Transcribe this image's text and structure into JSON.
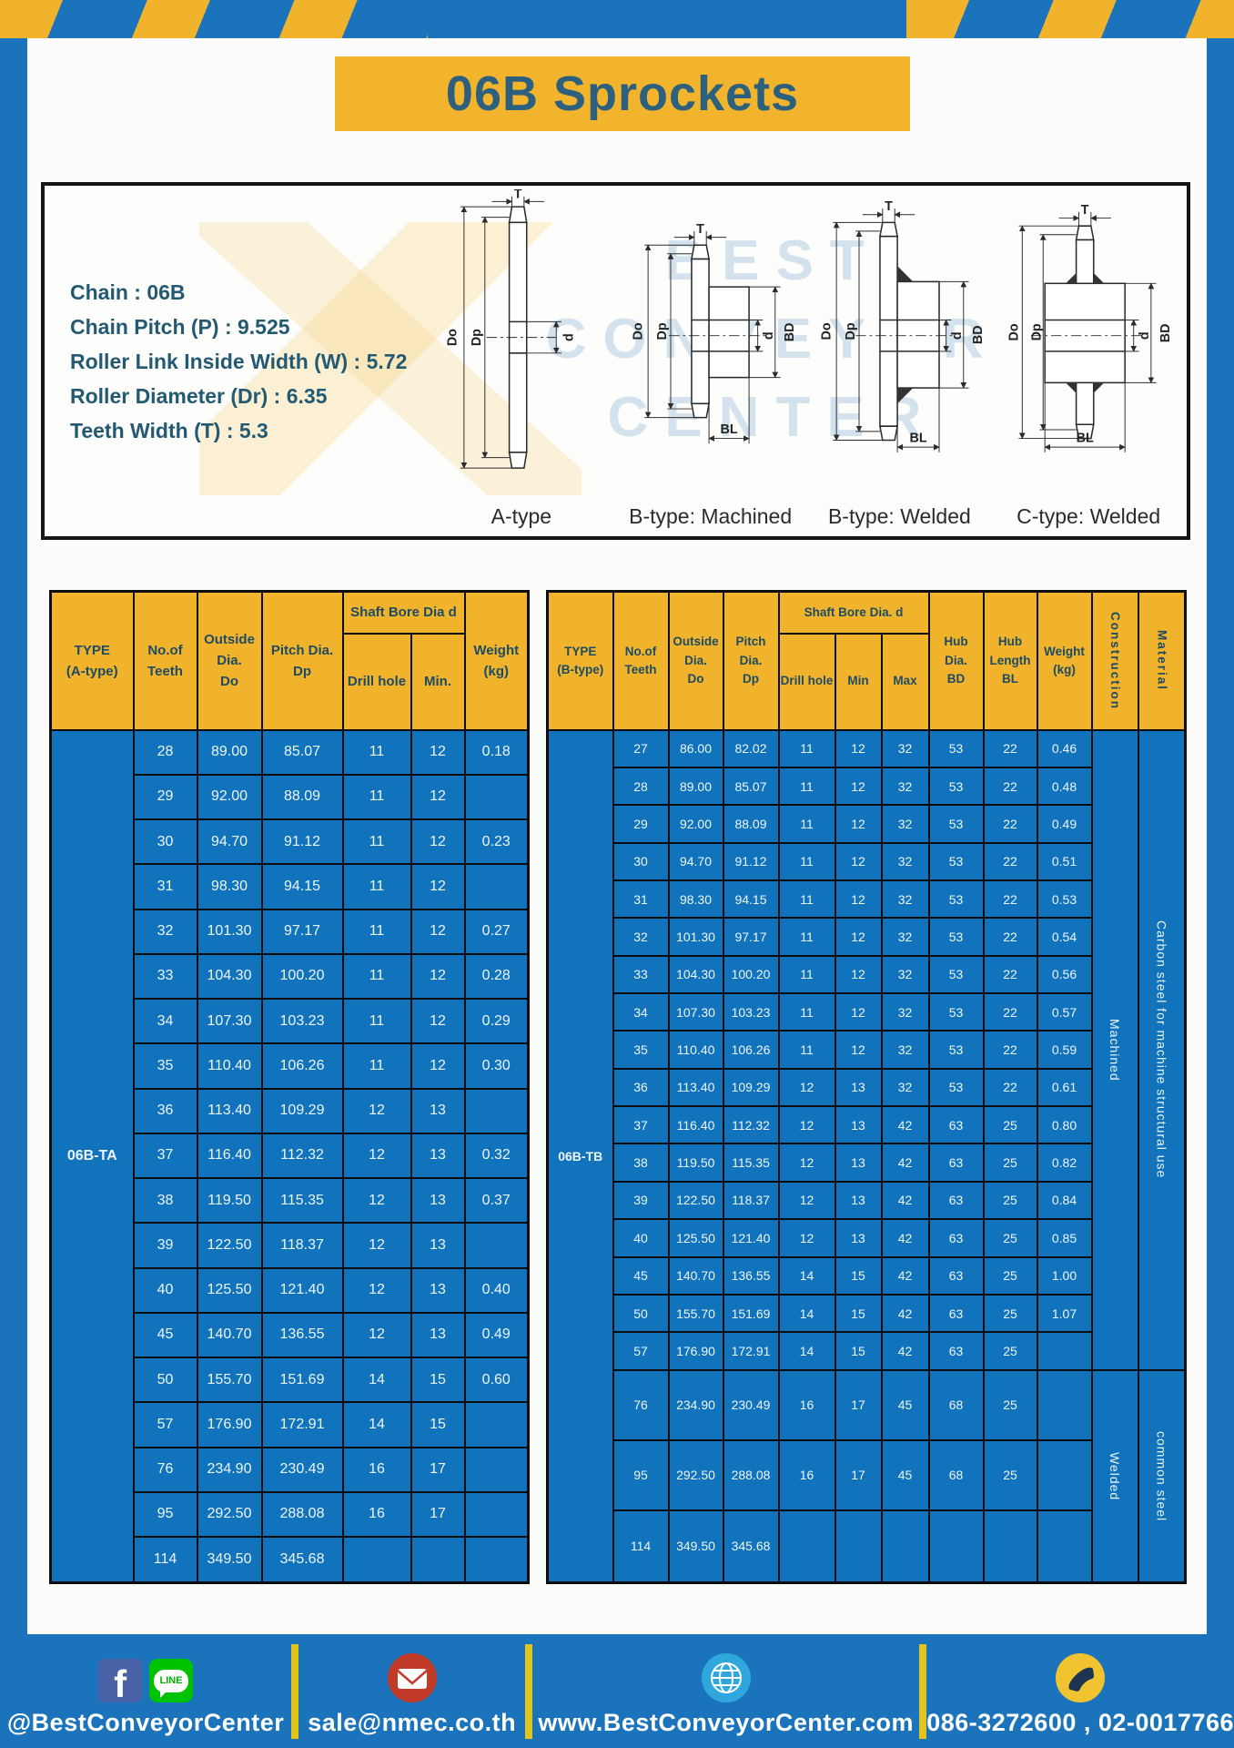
{
  "title": "06B Sprockets",
  "colors": {
    "brand_blue": "#1B74BB",
    "accent_yellow": "#F1B32C",
    "table_body_blue": "#1173BB",
    "title_text_teal": "#2C607E"
  },
  "specs": {
    "chain": "Chain : 06B",
    "pitch": "Chain Pitch (P) : 9.525",
    "roller_width": "Roller Link Inside Width (W) : 5.72",
    "roller_dia": "Roller Diameter (Dr) : 6.35",
    "teeth_width": "Teeth Width (T) : 5.3"
  },
  "diagrams": {
    "watermark": {
      "line1": "BEST",
      "line2": "CONVEYOR",
      "line3": "CENTER"
    },
    "dims": {
      "T": "T",
      "Do": "Do",
      "Dp": "Dp",
      "d": "d",
      "BD": "BD",
      "BL": "BL"
    },
    "labels": {
      "a": "A-type",
      "b_machined": "B-type: Machined",
      "b_welded": "B-type: Welded",
      "c_welded": "C-type: Welded"
    }
  },
  "tables": {
    "a": {
      "type_label": "06B-TA",
      "headers": {
        "type": "TYPE\n(A-type)",
        "teeth": "No.of\nTeeth",
        "outside": "Outside\nDia.\nDo",
        "pitch": "Pitch Dia.\nDp",
        "shaft_group": "Shaft Bore Dia d",
        "drill": "Drill hole",
        "min": "Min.",
        "weight": "Weight\n(kg)"
      },
      "rows": [
        [
          "28",
          "89.00",
          "85.07",
          "11",
          "12",
          "0.18"
        ],
        [
          "29",
          "92.00",
          "88.09",
          "11",
          "12",
          ""
        ],
        [
          "30",
          "94.70",
          "91.12",
          "11",
          "12",
          "0.23"
        ],
        [
          "31",
          "98.30",
          "94.15",
          "11",
          "12",
          ""
        ],
        [
          "32",
          "101.30",
          "97.17",
          "11",
          "12",
          "0.27"
        ],
        [
          "33",
          "104.30",
          "100.20",
          "11",
          "12",
          "0.28"
        ],
        [
          "34",
          "107.30",
          "103.23",
          "11",
          "12",
          "0.29"
        ],
        [
          "35",
          "110.40",
          "106.26",
          "11",
          "12",
          "0.30"
        ],
        [
          "36",
          "113.40",
          "109.29",
          "12",
          "13",
          ""
        ],
        [
          "37",
          "116.40",
          "112.32",
          "12",
          "13",
          "0.32"
        ],
        [
          "38",
          "119.50",
          "115.35",
          "12",
          "13",
          "0.37"
        ],
        [
          "39",
          "122.50",
          "118.37",
          "12",
          "13",
          ""
        ],
        [
          "40",
          "125.50",
          "121.40",
          "12",
          "13",
          "0.40"
        ],
        [
          "45",
          "140.70",
          "136.55",
          "12",
          "13",
          "0.49"
        ],
        [
          "50",
          "155.70",
          "151.69",
          "14",
          "15",
          "0.60"
        ],
        [
          "57",
          "176.90",
          "172.91",
          "14",
          "15",
          ""
        ],
        [
          "76",
          "234.90",
          "230.49",
          "16",
          "17",
          ""
        ],
        [
          "95",
          "292.50",
          "288.08",
          "16",
          "17",
          ""
        ],
        [
          "114",
          "349.50",
          "345.68",
          "",
          "",
          ""
        ]
      ],
      "tail_cells": []
    },
    "b": {
      "type_label": "06B-TB",
      "headers": {
        "type": "TYPE\n(B-type)",
        "teeth": "No.of\nTeeth",
        "outside": "Outside\nDia.\nDo",
        "pitch": "Pitch\nDia.\nDp",
        "shaft_group": "Shaft Bore Dia. d",
        "drill": "Drill hole",
        "min": "Min",
        "max": "Max",
        "hub_dia": "Hub\nDia.\nBD",
        "hub_len": "Hub\nLength\nBL",
        "weight": "Weight\n(kg)",
        "construction": "Construction",
        "material": "Material"
      },
      "rows": [
        [
          "27",
          "86.00",
          "82.02",
          "11",
          "12",
          "32",
          "53",
          "22",
          "0.46"
        ],
        [
          "28",
          "89.00",
          "85.07",
          "11",
          "12",
          "32",
          "53",
          "22",
          "0.48"
        ],
        [
          "29",
          "92.00",
          "88.09",
          "11",
          "12",
          "32",
          "53",
          "22",
          "0.49"
        ],
        [
          "30",
          "94.70",
          "91.12",
          "11",
          "12",
          "32",
          "53",
          "22",
          "0.51"
        ],
        [
          "31",
          "98.30",
          "94.15",
          "11",
          "12",
          "32",
          "53",
          "22",
          "0.53"
        ],
        [
          "32",
          "101.30",
          "97.17",
          "11",
          "12",
          "32",
          "53",
          "22",
          "0.54"
        ],
        [
          "33",
          "104.30",
          "100.20",
          "11",
          "12",
          "32",
          "53",
          "22",
          "0.56"
        ],
        [
          "34",
          "107.30",
          "103.23",
          "11",
          "12",
          "32",
          "53",
          "22",
          "0.57"
        ],
        [
          "35",
          "110.40",
          "106.26",
          "11",
          "12",
          "32",
          "53",
          "22",
          "0.59"
        ],
        [
          "36",
          "113.40",
          "109.29",
          "12",
          "13",
          "32",
          "53",
          "22",
          "0.61"
        ],
        [
          "37",
          "116.40",
          "112.32",
          "12",
          "13",
          "42",
          "63",
          "25",
          "0.80"
        ],
        [
          "38",
          "119.50",
          "115.35",
          "12",
          "13",
          "42",
          "63",
          "25",
          "0.82"
        ],
        [
          "39",
          "122.50",
          "118.37",
          "12",
          "13",
          "42",
          "63",
          "25",
          "0.84"
        ],
        [
          "40",
          "125.50",
          "121.40",
          "12",
          "13",
          "42",
          "63",
          "25",
          "0.85"
        ],
        [
          "45",
          "140.70",
          "136.55",
          "14",
          "15",
          "42",
          "63",
          "25",
          "1.00"
        ],
        [
          "50",
          "155.70",
          "151.69",
          "14",
          "15",
          "42",
          "63",
          "25",
          "1.07"
        ],
        [
          "57",
          "176.90",
          "172.91",
          "14",
          "15",
          "42",
          "63",
          "25",
          ""
        ],
        [
          "76",
          "234.90",
          "230.49",
          "16",
          "17",
          "45",
          "68",
          "25",
          ""
        ],
        [
          "95",
          "292.50",
          "288.08",
          "16",
          "17",
          "45",
          "68",
          "25",
          ""
        ],
        [
          "114",
          "349.50",
          "345.68",
          "",
          "",
          "",
          "",
          "",
          ""
        ]
      ],
      "tail_cells": [
        {
          "row": 0,
          "span": 17,
          "text": "Machined"
        },
        {
          "row": 0,
          "span": 17,
          "text": "Carbon steel for machine structural use"
        },
        {
          "row": 17,
          "span": 3,
          "text": "Welded"
        },
        {
          "row": 17,
          "span": 3,
          "text": "common steel"
        }
      ]
    }
  },
  "footer": {
    "facebook_glyph": "f",
    "line_label": "LINE",
    "social_handle": "@BestConveyorCenter",
    "email": "sale@nmec.co.th",
    "website": "www.BestConveyorCenter.com",
    "phones": "086-3272600 , 02-0017766"
  }
}
